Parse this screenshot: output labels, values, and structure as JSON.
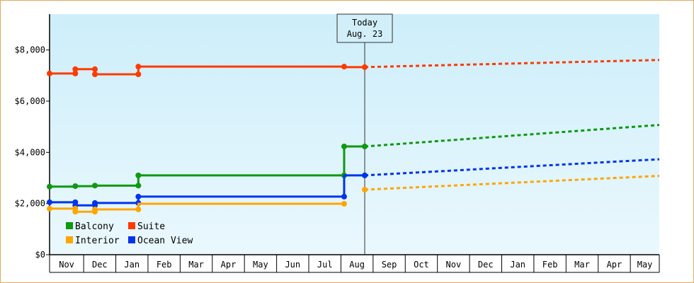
{
  "chart_data": {
    "type": "line",
    "title": "",
    "xlabel": "",
    "ylabel": "",
    "ylim": [
      0,
      9400
    ],
    "y_ticks": [
      {
        "value": 0,
        "label": "$0"
      },
      {
        "value": 2000,
        "label": "$2,000"
      },
      {
        "value": 4000,
        "label": "$4,000"
      },
      {
        "value": 6000,
        "label": "$6,000"
      },
      {
        "value": 8000,
        "label": "$8,000"
      }
    ],
    "x_unit": "months since start of Nov (axis start ~ Oct 29)",
    "xlim": [
      -0.06,
      18.9
    ],
    "months": [
      "Nov",
      "Dec",
      "Jan",
      "Feb",
      "Mar",
      "Apr",
      "May",
      "Jun",
      "Jul",
      "Aug",
      "Sep",
      "Oct",
      "Nov",
      "Dec",
      "Jan",
      "Feb",
      "Mar",
      "Apr",
      "May"
    ],
    "today": {
      "x": 9.74,
      "line1": "Today",
      "line2": "Aug. 23"
    },
    "grid": false,
    "legend_placement": "bottom-left",
    "background_gradient": [
      "#cdeefa",
      "#eaf8fd"
    ],
    "series": [
      {
        "name": "Suite",
        "color": "#ff3a00",
        "history": [
          [
            -0.06,
            7080
          ],
          [
            0.74,
            7080
          ],
          [
            0.74,
            7250
          ],
          [
            1.35,
            7250
          ],
          [
            1.35,
            7050
          ],
          [
            2.7,
            7050
          ],
          [
            2.7,
            7350
          ],
          [
            9.1,
            7350
          ],
          [
            9.1,
            7330
          ],
          [
            9.74,
            7330
          ]
        ],
        "markers": [
          [
            -0.06,
            7080
          ],
          [
            0.74,
            7080
          ],
          [
            0.74,
            7250
          ],
          [
            1.35,
            7250
          ],
          [
            1.35,
            7050
          ],
          [
            2.7,
            7050
          ],
          [
            2.7,
            7350
          ],
          [
            9.1,
            7350
          ],
          [
            9.74,
            7330
          ]
        ],
        "forecast": [
          [
            9.74,
            7330
          ],
          [
            18.9,
            7610
          ]
        ]
      },
      {
        "name": "Balcony",
        "color": "#0f990f",
        "history": [
          [
            -0.06,
            2660
          ],
          [
            0.74,
            2660
          ],
          [
            0.74,
            2680
          ],
          [
            1.35,
            2680
          ],
          [
            1.35,
            2700
          ],
          [
            2.7,
            2700
          ],
          [
            2.7,
            3100
          ],
          [
            9.1,
            3100
          ],
          [
            9.1,
            4230
          ],
          [
            9.74,
            4230
          ]
        ],
        "markers": [
          [
            -0.06,
            2660
          ],
          [
            0.74,
            2680
          ],
          [
            1.35,
            2700
          ],
          [
            2.7,
            2700
          ],
          [
            2.7,
            3100
          ],
          [
            9.1,
            3100
          ],
          [
            9.1,
            4230
          ],
          [
            9.74,
            4230
          ]
        ],
        "forecast": [
          [
            9.74,
            4230
          ],
          [
            18.9,
            5070
          ]
        ]
      },
      {
        "name": "Ocean View",
        "color": "#0033ee",
        "history": [
          [
            -0.06,
            2050
          ],
          [
            0.74,
            2050
          ],
          [
            0.74,
            1930
          ],
          [
            1.35,
            1930
          ],
          [
            1.35,
            2020
          ],
          [
            2.7,
            2020
          ],
          [
            2.7,
            2270
          ],
          [
            9.1,
            2270
          ],
          [
            9.1,
            3100
          ],
          [
            9.74,
            3100
          ]
        ],
        "markers": [
          [
            -0.06,
            2050
          ],
          [
            0.74,
            2050
          ],
          [
            0.74,
            1930
          ],
          [
            1.35,
            1930
          ],
          [
            1.35,
            2020
          ],
          [
            2.7,
            2020
          ],
          [
            2.7,
            2270
          ],
          [
            9.1,
            2270
          ],
          [
            9.74,
            3100
          ]
        ],
        "forecast": [
          [
            9.74,
            3100
          ],
          [
            18.9,
            3730
          ]
        ]
      },
      {
        "name": "Interior",
        "color": "#ffa500",
        "history": [
          [
            -0.06,
            1800
          ],
          [
            0.74,
            1800
          ],
          [
            0.74,
            1680
          ],
          [
            1.35,
            1680
          ],
          [
            1.35,
            1770
          ],
          [
            2.7,
            1770
          ],
          [
            2.7,
            1990
          ],
          [
            9.1,
            1990
          ]
        ],
        "markers": [
          [
            -0.06,
            1800
          ],
          [
            0.74,
            1800
          ],
          [
            0.74,
            1680
          ],
          [
            1.35,
            1680
          ],
          [
            1.35,
            1770
          ],
          [
            2.7,
            1770
          ],
          [
            9.1,
            1990
          ],
          [
            9.74,
            2540
          ]
        ],
        "forecast": [
          [
            9.74,
            2540
          ],
          [
            18.9,
            3080
          ]
        ]
      }
    ],
    "legend": [
      {
        "name": "Balcony",
        "color": "#0f990f"
      },
      {
        "name": "Suite",
        "color": "#ff3a00"
      },
      {
        "name": "Interior",
        "color": "#ffa500"
      },
      {
        "name": "Ocean View",
        "color": "#0033ee"
      }
    ]
  }
}
